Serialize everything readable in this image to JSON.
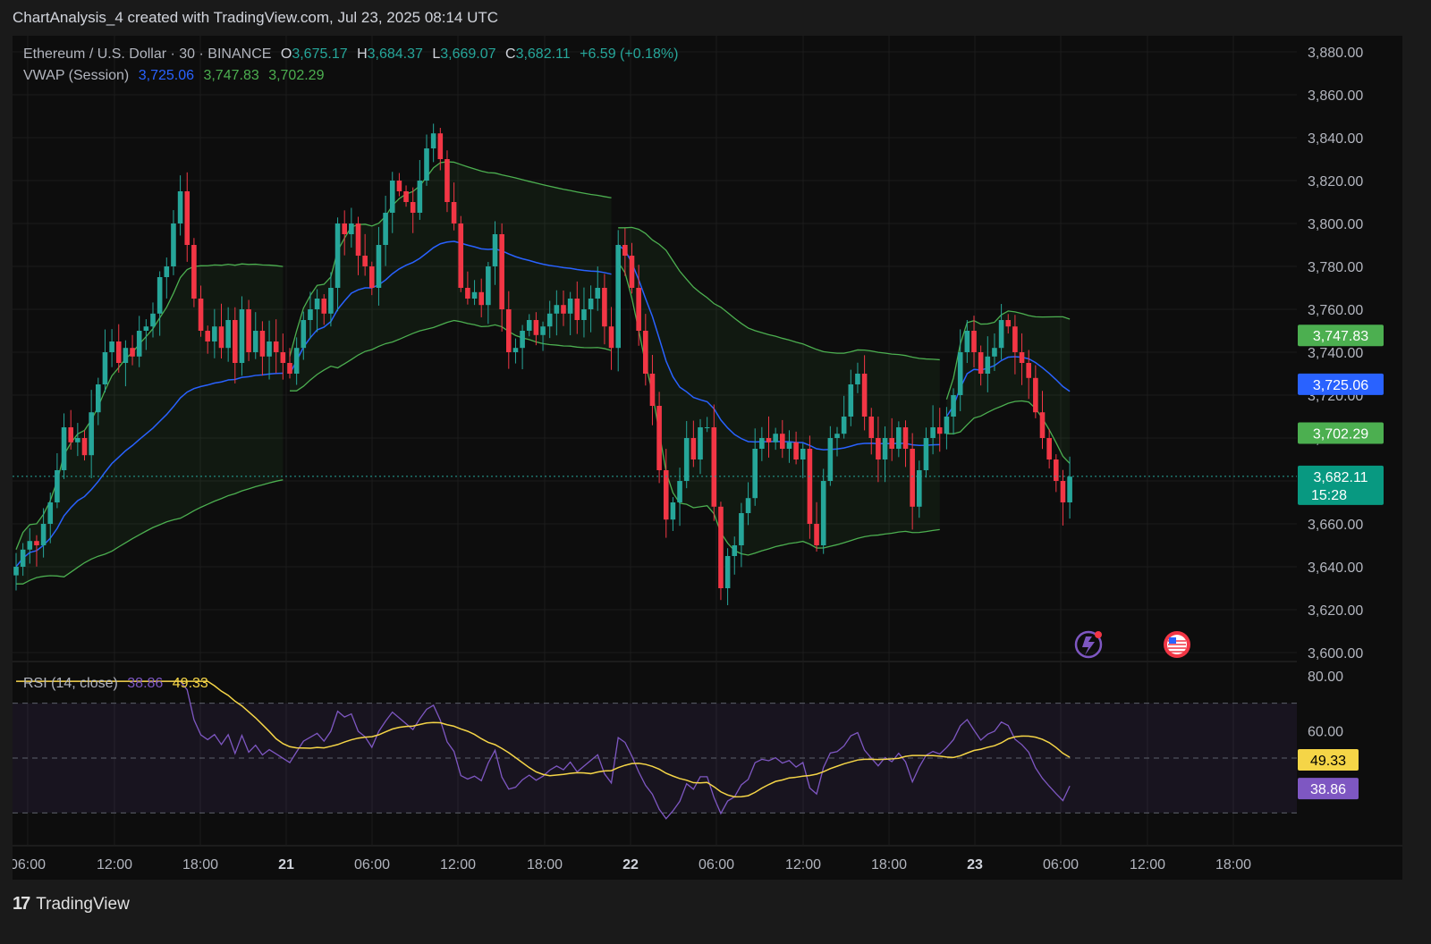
{
  "header": {
    "title": "ChartAnalysis_4 created with TradingView.com, Jul 23, 2025 08:14 UTC"
  },
  "legend": {
    "symbol": "Ethereum / U.S. Dollar · 30 · BINANCE",
    "o_label": "O",
    "o_value": "3,675.17",
    "h_label": "H",
    "h_value": "3,684.37",
    "l_label": "L",
    "l_value": "3,669.07",
    "c_label": "C",
    "c_value": "3,682.11",
    "change": "+6.59 (+0.18%)",
    "vwap_label": "VWAP (Session)",
    "vwap_value": "3,725.06",
    "vwap_upper": "3,747.83",
    "vwap_lower": "3,702.29",
    "rsi_label": "RSI (14, close)",
    "rsi_value": "38.86",
    "rsi_ma": "49.33"
  },
  "footer": {
    "brand": "TradingView"
  },
  "colors": {
    "up": "#26a69a",
    "down": "#f23645",
    "vwap": "#2962ff",
    "band": "#4caf50",
    "rsi": "#7e57c2",
    "rsi_ma": "#f5d547"
  },
  "chart_data": [
    {
      "type": "candlestick",
      "title": "Ethereum / U.S. Dollar · 30 · BINANCE",
      "ylim": [
        3600,
        3880
      ],
      "yticks": [
        "3,880.00",
        "3,860.00",
        "3,840.00",
        "3,820.00",
        "3,800.00",
        "3,780.00",
        "3,760.00",
        "3,740.00",
        "3,720.00",
        "3,700.00",
        "3,680.00",
        "3,660.00",
        "3,640.00",
        "3,620.00",
        "3,600.00"
      ],
      "xticks": [
        "06:00",
        "12:00",
        "18:00",
        "21",
        "06:00",
        "12:00",
        "18:00",
        "22",
        "06:00",
        "12:00",
        "18:00",
        "23",
        "06:00",
        "12:00",
        "18:00"
      ],
      "price_labels": {
        "vwap_upper": "3,747.83",
        "vwap": "3,725.06",
        "vwap_lower": "3,702.29",
        "last": "3,682.11",
        "countdown": "15:28"
      },
      "close_path": [
        3640,
        3648,
        3652,
        3650,
        3660,
        3670,
        3685,
        3705,
        3698,
        3700,
        3692,
        3712,
        3725,
        3740,
        3745,
        3735,
        3742,
        3738,
        3750,
        3752,
        3758,
        3775,
        3780,
        3800,
        3815,
        3790,
        3765,
        3750,
        3745,
        3752,
        3742,
        3755,
        3735,
        3760,
        3740,
        3750,
        3738,
        3745,
        3740,
        3735,
        3730,
        3742,
        3755,
        3760,
        3765,
        3758,
        3770,
        3800,
        3795,
        3800,
        3785,
        3780,
        3770,
        3790,
        3805,
        3820,
        3815,
        3810,
        3805,
        3820,
        3835,
        3842,
        3830,
        3810,
        3800,
        3770,
        3765,
        3768,
        3762,
        3780,
        3795,
        3760,
        3740,
        3742,
        3750,
        3755,
        3748,
        3752,
        3758,
        3762,
        3758,
        3765,
        3755,
        3760,
        3765,
        3770,
        3752,
        3742,
        3790,
        3785,
        3770,
        3750,
        3730,
        3715,
        3685,
        3662,
        3670,
        3680,
        3700,
        3690,
        3705,
        3705,
        3668,
        3630,
        3645,
        3650,
        3665,
        3672,
        3695,
        3700,
        3698,
        3702,
        3695,
        3698,
        3690,
        3695,
        3660,
        3650,
        3680,
        3700,
        3702,
        3710,
        3725,
        3730,
        3710,
        3700,
        3690,
        3700,
        3695,
        3705,
        3695,
        3668,
        3685,
        3700,
        3705,
        3702,
        3710,
        3720,
        3740,
        3750,
        3740,
        3730,
        3738,
        3742,
        3755,
        3752,
        3740,
        3735,
        3728,
        3712,
        3700,
        3690,
        3680,
        3670,
        3682
      ]
    },
    {
      "type": "line",
      "title": "RSI (14, close)",
      "ylim": [
        20,
        80
      ],
      "yticks": [
        "80.00",
        "60.00"
      ],
      "series": [
        {
          "name": "RSI",
          "last": "38.86"
        },
        {
          "name": "RSI MA",
          "last": "49.33"
        }
      ]
    }
  ]
}
